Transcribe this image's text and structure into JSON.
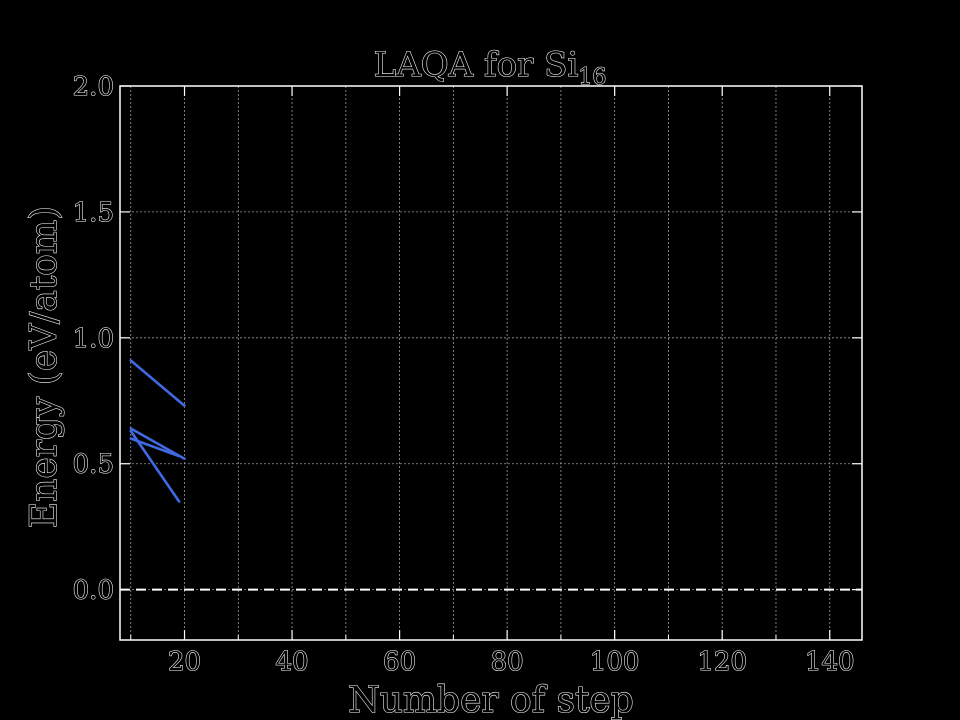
{
  "chart_data": {
    "type": "line",
    "title": "LAQA for Si",
    "title_subscript": "16",
    "xlabel": "Number of step",
    "ylabel": "Energy (eV/atom)",
    "xlim": [
      8,
      146
    ],
    "ylim": [
      -0.2,
      2.0
    ],
    "xticks": [
      20,
      40,
      60,
      80,
      100,
      120,
      140
    ],
    "yticks": [
      0.0,
      0.5,
      1.0,
      1.5,
      2.0
    ],
    "xtick_labels": [
      "20",
      "40",
      "60",
      "80",
      "100",
      "120",
      "140"
    ],
    "ytick_labels": [
      "0.0",
      "0.5",
      "1.0",
      "1.5",
      "2.0"
    ],
    "grid": true,
    "reference_line": {
      "y": 0.0,
      "style": "dashed",
      "color": "#ffffff"
    },
    "line_color": "#4169e1",
    "series": [
      {
        "x": [
          10,
          20
        ],
        "y": [
          0.91,
          0.73
        ]
      },
      {
        "x": [
          10,
          20
        ],
        "y": [
          0.64,
          0.52
        ]
      },
      {
        "x": [
          10,
          19
        ],
        "y": [
          0.6,
          0.53
        ]
      },
      {
        "x": [
          10,
          19
        ],
        "y": [
          0.63,
          0.35
        ]
      }
    ]
  }
}
